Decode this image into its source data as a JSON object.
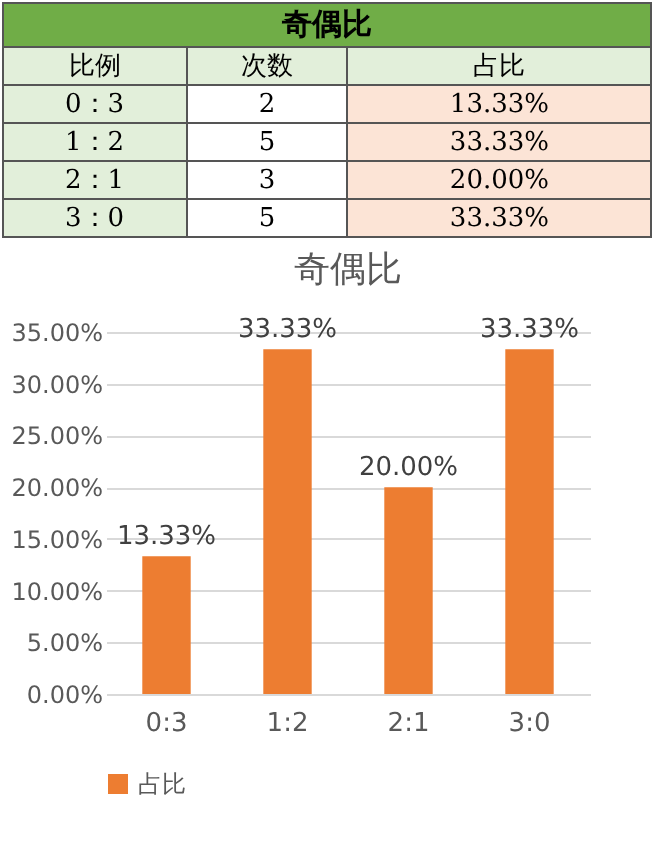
{
  "chart_data": [
    {
      "type": "other",
      "title": "奇偶比",
      "annotations": [
        "比例",
        "次数",
        "占比",
        "0：3",
        "2",
        "13.33%",
        "1：2",
        "5",
        "33.33%",
        "2：1",
        "3",
        "20.00%",
        "3：0",
        "5",
        "33.33%"
      ]
    },
    {
      "type": "bar",
      "title": "奇偶比",
      "categories": [
        "0:3",
        "1:2",
        "2:1",
        "3:0"
      ],
      "series": [
        {
          "name": "占比",
          "color": "#ed7d31",
          "values": [
            13.33,
            33.33,
            20.0,
            33.33
          ],
          "value_labels": [
            "13.33%",
            "33.33%",
            "20.00%",
            "33.33%"
          ]
        }
      ],
      "ylim": [
        0,
        35
      ],
      "yticks": [
        {
          "value": 0,
          "label": "0.00%"
        },
        {
          "value": 5,
          "label": "5.00%"
        },
        {
          "value": 10,
          "label": "10.00%"
        },
        {
          "value": 15,
          "label": "15.00%"
        },
        {
          "value": 20,
          "label": "20.00%"
        },
        {
          "value": 25,
          "label": "25.00%"
        },
        {
          "value": 30,
          "label": "30.00%"
        },
        {
          "value": 35,
          "label": "35.00%"
        }
      ],
      "grid": "y",
      "legend": "bottom"
    }
  ]
}
